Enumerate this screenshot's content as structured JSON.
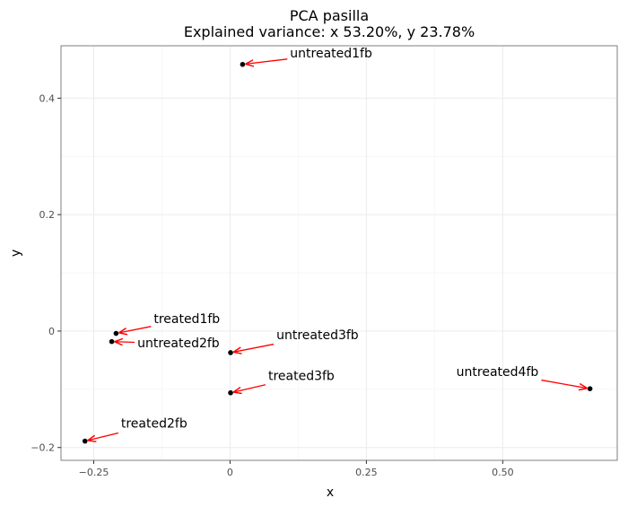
{
  "chart_data": {
    "type": "scatter",
    "title": "PCA pasilla",
    "subtitle": "Explained variance: x 53.20%, y 23.78%",
    "xlabel": "x",
    "ylabel": "y",
    "xlim": [
      -0.31,
      0.71
    ],
    "ylim": [
      -0.222,
      0.49
    ],
    "x_ticks": [
      -0.25,
      0,
      0.25,
      0.5
    ],
    "x_tick_labels": [
      "−0.25",
      "0",
      "0.25",
      "0.50"
    ],
    "y_ticks": [
      -0.2,
      0,
      0.2,
      0.4
    ],
    "y_tick_labels": [
      "−0.2",
      "0",
      "0.2",
      "0.4"
    ],
    "grid": true,
    "point_color": "#000000",
    "arrow_color": "#ff0000",
    "points": [
      {
        "label": "untreated1fb",
        "x": 0.023,
        "y": 0.458,
        "label_x": 0.11,
        "label_y": 0.47
      },
      {
        "label": "treated1fb",
        "x": -0.209,
        "y": -0.004,
        "label_x": -0.14,
        "label_y": 0.014
      },
      {
        "label": "untreated2fb",
        "x": -0.217,
        "y": -0.018,
        "label_x": -0.17,
        "label_y": -0.028
      },
      {
        "label": "untreated3fb",
        "x": 0.001,
        "y": -0.037,
        "label_x": 0.085,
        "label_y": -0.014
      },
      {
        "label": "treated3fb",
        "x": 0.001,
        "y": -0.106,
        "label_x": 0.07,
        "label_y": -0.084
      },
      {
        "label": "untreated4fb",
        "x": 0.66,
        "y": -0.099,
        "label_x": 0.415,
        "label_y": -0.077
      },
      {
        "label": "treated2fb",
        "x": -0.266,
        "y": -0.189,
        "label_x": -0.2,
        "label_y": -0.166
      }
    ]
  }
}
